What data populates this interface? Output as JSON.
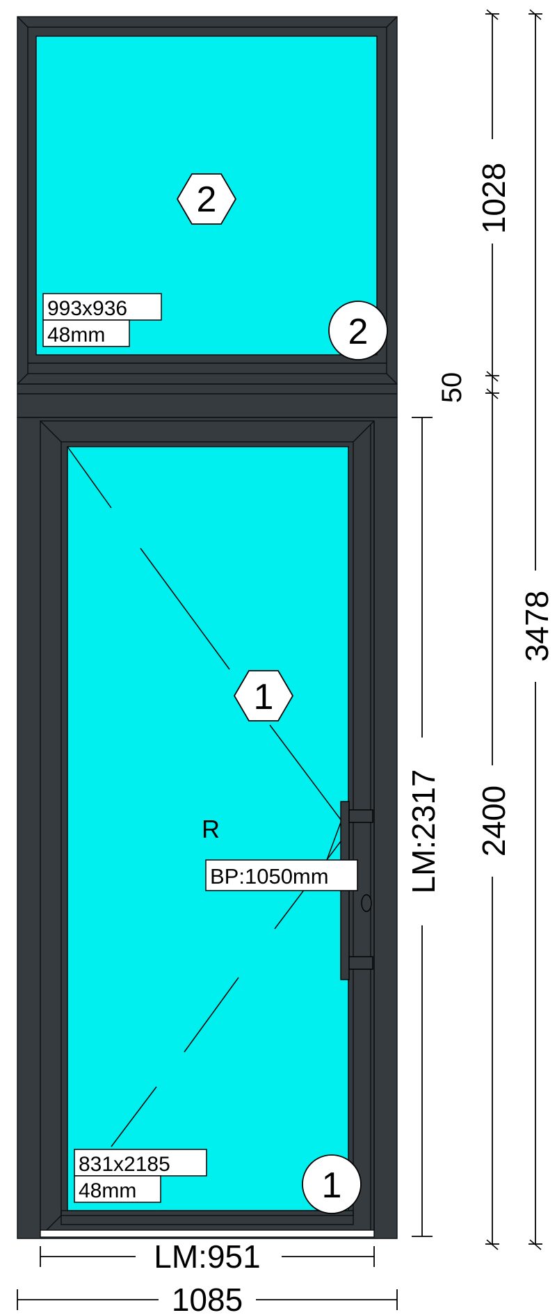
{
  "upper_panel": {
    "marker_hex": "2",
    "marker_circle": "2",
    "glass_size": "993x936",
    "glass_thickness": "48mm"
  },
  "lower_panel": {
    "marker_hex": "1",
    "marker_circle": "1",
    "glass_size": "831x2185",
    "glass_thickness": "48mm",
    "opening_side": "R",
    "handle_height": "BP:1050mm"
  },
  "dimensions": {
    "upper_height": "1028",
    "transom": "50",
    "lower_height": "2400",
    "total_height": "3478",
    "leaf_height": "LM:2317",
    "leaf_width": "LM:951",
    "total_width": "1085"
  },
  "colors": {
    "frame": "#353b3f",
    "glass": "#00f0f0"
  }
}
